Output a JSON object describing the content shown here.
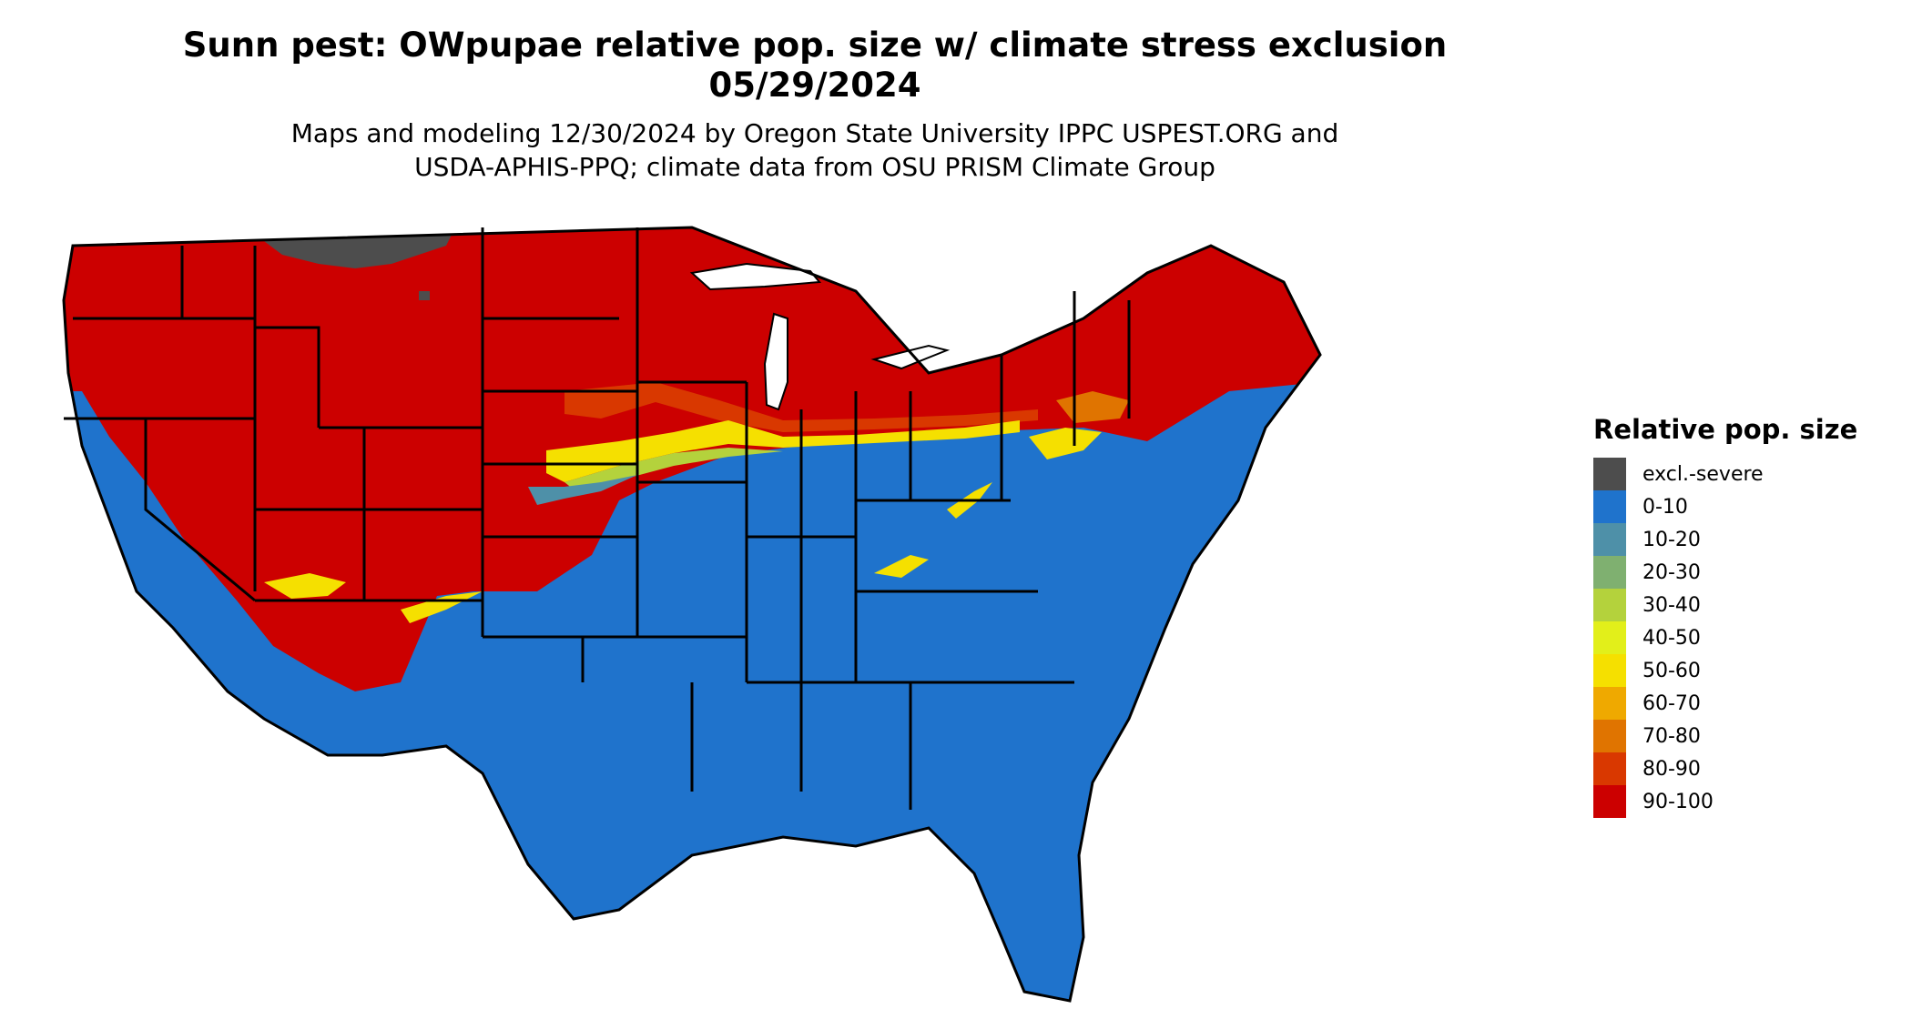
{
  "header": {
    "title_line1": "Sunn pest: OWpupae relative pop. size w/ climate stress exclusion",
    "title_line2": "05/29/2024",
    "subtitle_line1": "Maps and modeling 12/30/2024 by Oregon State University IPPC USPEST.ORG and",
    "subtitle_line2": "USDA-APHIS-PPQ; climate data from OSU PRISM Climate Group"
  },
  "legend": {
    "title": "Relative pop. size",
    "items": [
      {
        "label": "excl.-severe",
        "color": "#4d4d4d"
      },
      {
        "label": "0-10",
        "color": "#1f73cc"
      },
      {
        "label": "10-20",
        "color": "#4e90a8"
      },
      {
        "label": "20-30",
        "color": "#7fb070"
      },
      {
        "label": "30-40",
        "color": "#b4d23c"
      },
      {
        "label": "40-50",
        "color": "#e2ef1a"
      },
      {
        "label": "50-60",
        "color": "#f5e000"
      },
      {
        "label": "60-70",
        "color": "#efa900"
      },
      {
        "label": "70-80",
        "color": "#e07400"
      },
      {
        "label": "80-90",
        "color": "#d93800"
      },
      {
        "label": "90-100",
        "color": "#cc0000"
      }
    ]
  }
}
